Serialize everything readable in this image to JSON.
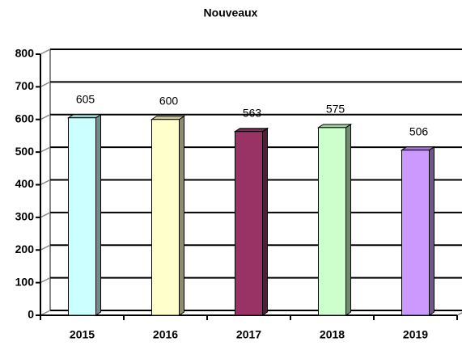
{
  "chart_data": {
    "type": "bar",
    "title": "Nouveaux",
    "categories": [
      "2015",
      "2016",
      "2017",
      "2018",
      "2019"
    ],
    "values": [
      605,
      600,
      563,
      575,
      506
    ],
    "colors": [
      "#ccffff",
      "#ffffcc",
      "#993366",
      "#ccffcc",
      "#cc99ff"
    ],
    "ylim": [
      0,
      800
    ],
    "yticks": [
      0,
      100,
      200,
      300,
      400,
      500,
      600,
      700,
      800
    ],
    "grid": true
  }
}
